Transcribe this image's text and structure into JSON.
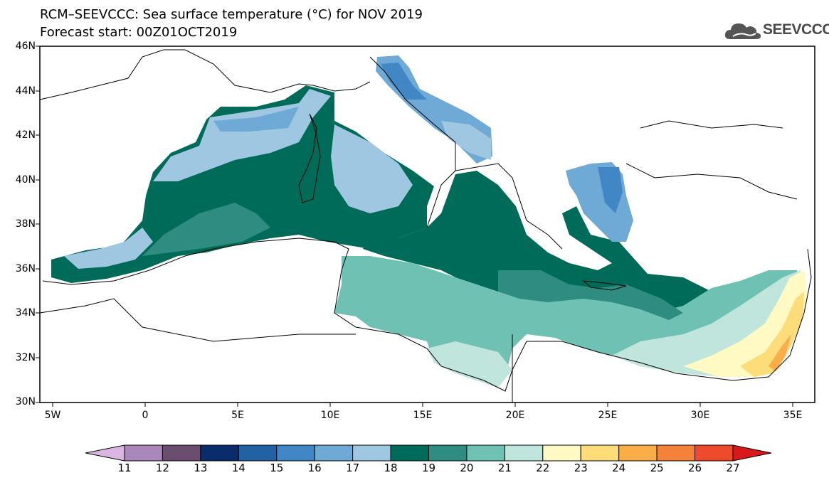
{
  "header": {
    "title_line1": "RCM–SEEVCCC: Sea surface temperature (°C) for NOV 2019",
    "title_line2": "Forecast start: 00Z01OCT2019",
    "logo_text": "SEEVCCC"
  },
  "map": {
    "lat_labels": [
      "46N",
      "44N",
      "42N",
      "40N",
      "38N",
      "36N",
      "34N",
      "32N",
      "30N"
    ],
    "lon_labels": [
      "5W",
      "0",
      "5E",
      "10E",
      "15E",
      "20E",
      "25E",
      "30E",
      "35E"
    ]
  },
  "colorbar": {
    "labels": [
      "11",
      "12",
      "13",
      "14",
      "15",
      "16",
      "17",
      "18",
      "19",
      "20",
      "21",
      "22",
      "23",
      "24",
      "25",
      "26",
      "27"
    ],
    "colors": [
      "#dcb6e3",
      "#a987bb",
      "#6b4d6f",
      "#0b2c6b",
      "#2261a4",
      "#4187c5",
      "#6faad7",
      "#9fc7e1",
      "#006b59",
      "#2e8c80",
      "#6fc2b3",
      "#bfe5dc",
      "#fff9c4",
      "#fddc7a",
      "#f9ae4a",
      "#f5823a",
      "#ee4a2d",
      "#d7191c"
    ]
  }
}
